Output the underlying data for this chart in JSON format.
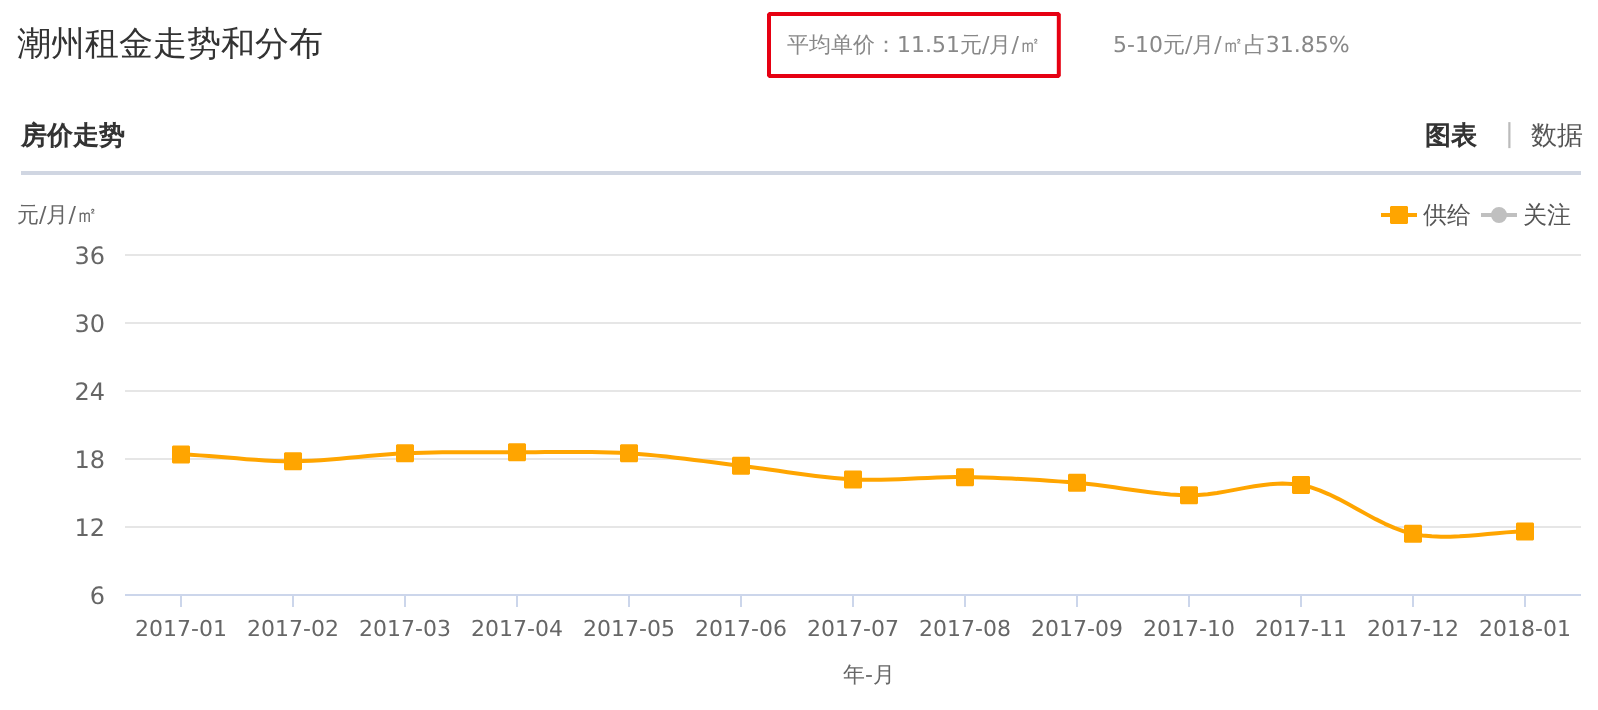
{
  "chart_data": {
    "type": "line",
    "title": "潮州租金走势和分布",
    "annotations": [
      "平均单价：11.51元/月/㎡",
      "5-10元/月/㎡占31.85%",
      "房价走势",
      "图表",
      "|",
      "数据"
    ],
    "ylabel": "元/月/㎡",
    "xlabel": "年-月",
    "categories": [
      "2017-01",
      "2017-02",
      "2017-03",
      "2017-04",
      "2017-05",
      "2017-06",
      "2017-07",
      "2017-08",
      "2017-09",
      "2017-10",
      "2017-11",
      "2017-12",
      "2018-01"
    ],
    "series": [
      {
        "name": "供给",
        "color": "#ffa500",
        "values": [
          18.4,
          17.8,
          18.5,
          18.6,
          18.5,
          17.4,
          16.2,
          16.4,
          15.9,
          14.8,
          15.7,
          11.4,
          11.6
        ]
      },
      {
        "name": "关注",
        "color": "#c0c0c0",
        "marker": "circle",
        "values": [
          null,
          null,
          null,
          null,
          null,
          null,
          null,
          null,
          null,
          null,
          null,
          null,
          null
        ]
      }
    ],
    "ylim": [
      6,
      36
    ],
    "yticks": [
      6,
      12,
      18,
      24,
      30,
      36
    ],
    "grid": "y",
    "legend": "top right",
    "marker": "square",
    "line_style": "solid"
  }
}
